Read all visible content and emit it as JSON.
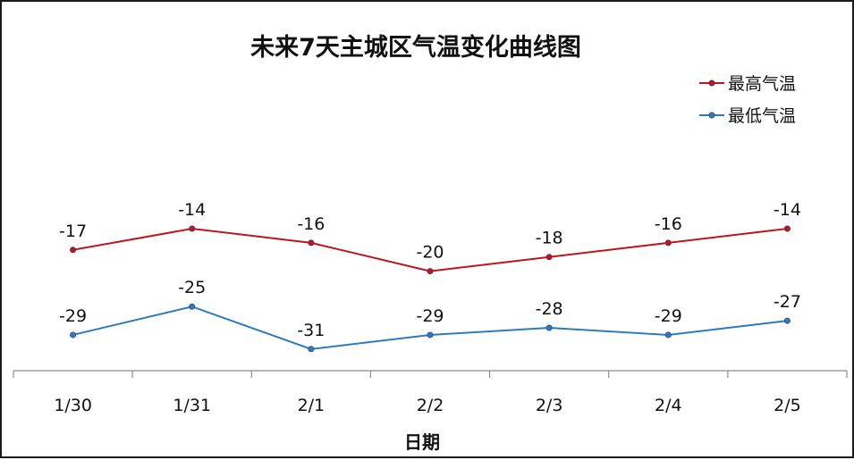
{
  "chart_data": {
    "type": "line",
    "title": "未来7天主城区气温变化曲线图",
    "xlabel": "日期",
    "ylabel": "",
    "categories": [
      "1/30",
      "1/31",
      "2/1",
      "2/2",
      "2/3",
      "2/4",
      "2/5"
    ],
    "series": [
      {
        "name": "最高气温",
        "color": "#c0141c",
        "values": [
          -17,
          -14,
          -16,
          -20,
          -18,
          -16,
          -14
        ]
      },
      {
        "name": "最低气温",
        "color": "#2c7bbf",
        "values": [
          -29,
          -25,
          -31,
          -29,
          -28,
          -29,
          -27
        ]
      }
    ],
    "ylim": [
      -35,
      0
    ],
    "grid": false,
    "legend": "top-right",
    "data_labels": true
  }
}
